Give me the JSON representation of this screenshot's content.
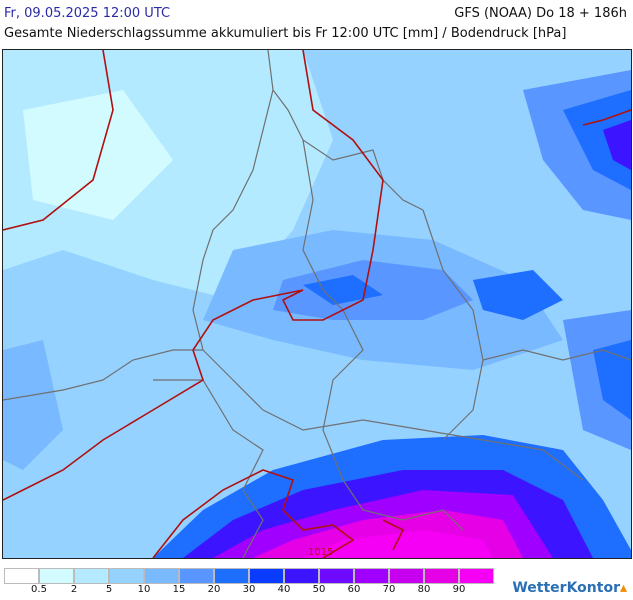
{
  "header": {
    "datetime": "Fr, 09.05.2025 12:00 UTC",
    "model": "GFS (NOAA) Do 18 + 186h",
    "subtitle": "Gesamte Niederschlagssumme akkumuliert bis Fr 12:00 UTC [mm] / Bodendruck [hPa]"
  },
  "map": {
    "isobar_label": "1015",
    "isobar_color": "#b01010",
    "border_color": "#707070"
  },
  "legend": {
    "colors": [
      "#ffffff",
      "#d2fbff",
      "#b4eaff",
      "#96d2ff",
      "#78b9ff",
      "#5a96ff",
      "#1e6eff",
      "#0a3cff",
      "#3c14ff",
      "#6e0aff",
      "#a000ff",
      "#c800f0",
      "#e600e6",
      "#f500f5"
    ],
    "ticks": [
      "0.5",
      "2",
      "5",
      "10",
      "15",
      "20",
      "30",
      "40",
      "50",
      "60",
      "70",
      "80",
      "90"
    ]
  },
  "brand": {
    "name": "WetterKontor"
  }
}
